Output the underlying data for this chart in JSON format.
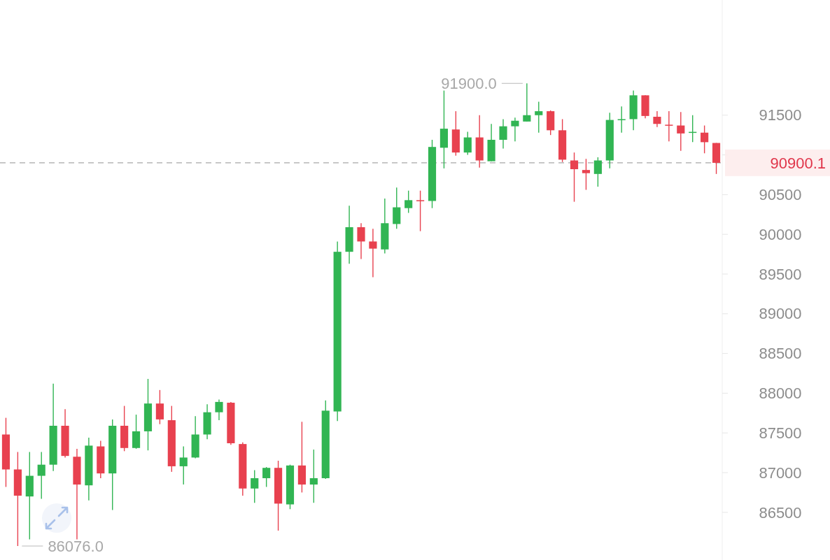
{
  "chart_data": {
    "type": "candlestick",
    "categories": [
      null,
      null,
      null,
      null,
      null,
      null,
      null,
      null,
      null,
      null,
      null,
      null,
      null,
      null,
      null,
      null,
      null,
      null,
      null,
      null,
      null,
      null,
      null,
      null,
      null,
      null,
      null,
      null,
      null,
      null,
      null,
      null,
      null,
      null,
      null,
      null,
      null,
      null,
      null,
      null,
      null,
      null,
      null,
      null,
      null,
      null,
      null,
      null,
      null,
      null,
      null,
      null,
      null,
      null,
      null,
      null,
      null,
      null,
      null,
      null,
      null
    ],
    "ohlc": [
      [
        87480,
        87690,
        86820,
        87040
      ],
      [
        87040,
        87260,
        86076,
        86710
      ],
      [
        86700,
        87260,
        86160,
        86960
      ],
      [
        86960,
        87260,
        86670,
        87100
      ],
      [
        87100,
        88120,
        87020,
        87590
      ],
      [
        87590,
        87800,
        87190,
        87210
      ],
      [
        87200,
        87300,
        86160,
        86850
      ],
      [
        86840,
        87440,
        86650,
        87340
      ],
      [
        87330,
        87400,
        86930,
        86990
      ],
      [
        86990,
        87670,
        86530,
        87590
      ],
      [
        87590,
        87840,
        87270,
        87310
      ],
      [
        87310,
        87730,
        87300,
        87520
      ],
      [
        87520,
        88180,
        87280,
        87870
      ],
      [
        87870,
        88040,
        87610,
        87670
      ],
      [
        87660,
        87840,
        87010,
        87080
      ],
      [
        87080,
        87330,
        86850,
        87190
      ],
      [
        87190,
        87710,
        87180,
        87480
      ],
      [
        87480,
        87860,
        87420,
        87760
      ],
      [
        87760,
        87920,
        87660,
        87890
      ],
      [
        87880,
        87890,
        87350,
        87370
      ],
      [
        87360,
        87380,
        86710,
        86800
      ],
      [
        86800,
        87030,
        86620,
        86930
      ],
      [
        86930,
        87070,
        86820,
        87060
      ],
      [
        87060,
        87150,
        86270,
        86610
      ],
      [
        86600,
        87100,
        86540,
        87090
      ],
      [
        87090,
        87640,
        86750,
        86850
      ],
      [
        86850,
        87290,
        86620,
        86930
      ],
      [
        86930,
        87910,
        86920,
        87780
      ],
      [
        87770,
        89910,
        87650,
        89780
      ],
      [
        89780,
        90360,
        89630,
        90090
      ],
      [
        90090,
        90140,
        89690,
        89910
      ],
      [
        89910,
        90070,
        89460,
        89820
      ],
      [
        89810,
        90450,
        89760,
        90140
      ],
      [
        90130,
        90590,
        90070,
        90340
      ],
      [
        90330,
        90550,
        90270,
        90430
      ],
      [
        90430,
        90550,
        90040,
        90420
      ],
      [
        90420,
        91190,
        90330,
        91100
      ],
      [
        91090,
        91810,
        90830,
        91330
      ],
      [
        91320,
        91550,
        90990,
        91030
      ],
      [
        91030,
        91290,
        91000,
        91220
      ],
      [
        91220,
        91500,
        90840,
        90930
      ],
      [
        90920,
        91390,
        90920,
        91190
      ],
      [
        91190,
        91450,
        91080,
        91360
      ],
      [
        91360,
        91470,
        91170,
        91430
      ],
      [
        91420,
        91900,
        91420,
        91500
      ],
      [
        91500,
        91670,
        91280,
        91550
      ],
      [
        91550,
        91560,
        91250,
        91310
      ],
      [
        91310,
        91450,
        90910,
        90940
      ],
      [
        90930,
        91030,
        90410,
        90820
      ],
      [
        90810,
        90950,
        90560,
        90770
      ],
      [
        90760,
        90970,
        90600,
        90930
      ],
      [
        90930,
        91530,
        90830,
        91440
      ],
      [
        91440,
        91610,
        91280,
        91450
      ],
      [
        91450,
        91810,
        91310,
        91750
      ],
      [
        91750,
        91750,
        91460,
        91490
      ],
      [
        91480,
        91550,
        91350,
        91390
      ],
      [
        91380,
        91550,
        91170,
        91370
      ],
      [
        91370,
        91540,
        91050,
        91270
      ],
      [
        91280,
        91500,
        91160,
        91290
      ],
      [
        91280,
        91370,
        91020,
        91160
      ],
      [
        91150,
        91150,
        90760,
        90900.1
      ]
    ],
    "colors": [
      "#e8414f",
      "#e8414f",
      "#31b553",
      "#31b553",
      "#31b553",
      "#e8414f",
      "#e8414f",
      "#31b553",
      "#e8414f",
      "#31b553",
      "#e8414f",
      "#31b553",
      "#31b553",
      "#e8414f",
      "#e8414f",
      "#31b553",
      "#31b553",
      "#31b553",
      "#31b553",
      "#e8414f",
      "#e8414f",
      "#31b553",
      "#31b553",
      "#e8414f",
      "#31b553",
      "#e8414f",
      "#31b553",
      "#31b553",
      "#31b553",
      "#31b553",
      "#e8414f",
      "#e8414f",
      "#31b553",
      "#31b553",
      "#31b553",
      "#e8414f",
      "#31b553",
      "#31b553",
      "#e8414f",
      "#31b553",
      "#e8414f",
      "#31b553",
      "#31b553",
      "#31b553",
      "#31b553",
      "#31b553",
      "#e8414f",
      "#e8414f",
      "#e8414f",
      "#e8414f",
      "#31b553",
      "#31b553",
      "#31b553",
      "#31b553",
      "#e8414f",
      "#e8414f",
      "#e8414f",
      "#e8414f",
      "#31b553",
      "#e8414f",
      "#e8414f"
    ],
    "ylim": [
      85900,
      92950
    ],
    "yticks": [
      86500,
      87000,
      87500,
      88000,
      88500,
      89000,
      89500,
      90000,
      90500,
      {
        "value": 91000,
        "label": null
      },
      91500
    ],
    "ref_lines": [
      {
        "axis": "y",
        "value": 90900.1,
        "label": "90900.1",
        "color": "#a8a8a8",
        "line_style": "dashed"
      }
    ],
    "annotations": [
      "91900.0",
      "86076.0"
    ]
  }
}
